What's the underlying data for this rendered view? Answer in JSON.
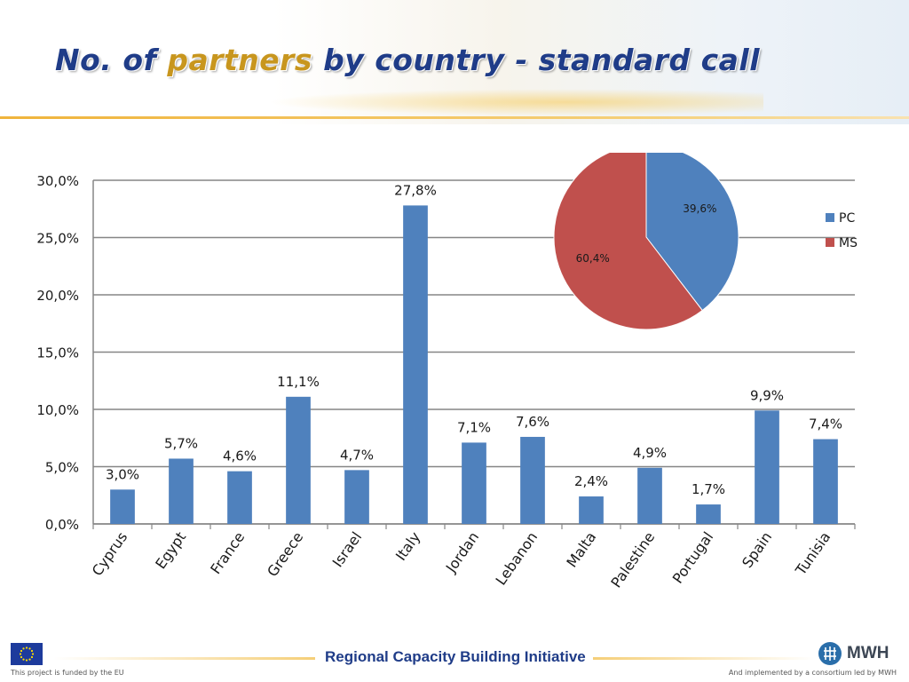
{
  "slide": {
    "title_part1": "No. of ",
    "title_highlight": "partners",
    "title_part2": " by country - standard call"
  },
  "footer": {
    "program_name": "Regional Capacity Building Initiative",
    "funding_note": "This project is funded by the EU",
    "implementation_note": "And implemented by a consortium led by MWH",
    "logo_text": "MWH"
  },
  "colors": {
    "title": "#1f3c88",
    "title_highlight": "#c8961e",
    "bar": "#4f81bd",
    "pc": "#4f81bd",
    "ms": "#c0504d",
    "gridline": "#868686"
  },
  "chart_data": [
    {
      "type": "bar",
      "categories": [
        "Cyprus",
        "Egypt",
        "France",
        "Greece",
        "Israel",
        "Italy",
        "Jordan",
        "Lebanon",
        "Malta",
        "Palestine",
        "Portugal",
        "Spain",
        "Tunisia"
      ],
      "values": [
        3.0,
        5.7,
        4.6,
        11.1,
        4.7,
        27.8,
        7.1,
        7.6,
        2.4,
        4.9,
        1.7,
        9.9,
        7.4
      ],
      "data_labels": [
        "3,0%",
        "5,7%",
        "4,6%",
        "11,1%",
        "4,7%",
        "27,8%",
        "7,1%",
        "7,6%",
        "2,4%",
        "4,9%",
        "1,7%",
        "9,9%",
        "7,4%"
      ],
      "y_ticks": [
        0,
        5,
        10,
        15,
        20,
        25,
        30
      ],
      "y_tick_labels": [
        "0,0%",
        "5,0%",
        "10,0%",
        "15,0%",
        "20,0%",
        "25,0%",
        "30,0%"
      ],
      "ylim": [
        0,
        30
      ],
      "grid": true,
      "unit": "%"
    },
    {
      "type": "pie",
      "labels": [
        "PC",
        "MS"
      ],
      "values": [
        39.6,
        60.4
      ],
      "data_labels": [
        "39,6%",
        "60,4%"
      ],
      "colors": [
        "#4f81bd",
        "#c0504d"
      ],
      "legend_position": "right"
    }
  ]
}
